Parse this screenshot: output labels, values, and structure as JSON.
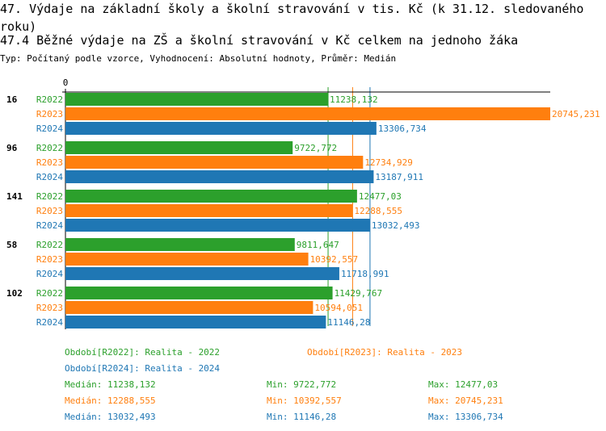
{
  "title": "47. Výdaje na základní školy a školní stravování v tis. Kč (k 31.12. sledovaného roku)",
  "subtitle": "47.4 Běžné výdaje na ZŠ a školní stravování v Kč celkem na jednoho žáka",
  "info": "Typ: Počítaný podle vzorce, Vyhodnocení: Absolutní hodnoty, Průměr: Medián",
  "colors": {
    "R2022": "#2ca02c",
    "R2023": "#ff7f0e",
    "R2024": "#1f77b4"
  },
  "chart_data": {
    "type": "bar",
    "orientation": "horizontal",
    "xlim": [
      0,
      20745.231
    ],
    "x_tick_labels": [
      "0"
    ],
    "categories": [
      "16",
      "96",
      "141",
      "58",
      "102"
    ],
    "series": [
      {
        "name": "R2022",
        "values": [
          11238.132,
          9722.772,
          12477.03,
          9811.647,
          11429.767
        ],
        "labels": [
          "11238,132",
          "9722,772",
          "12477,03",
          "9811,647",
          "11429,767"
        ]
      },
      {
        "name": "R2023",
        "values": [
          20745.231,
          12734.929,
          12288.555,
          10392.557,
          10594.051
        ],
        "labels": [
          "20745,231",
          "12734,929",
          "12288,555",
          "10392,557",
          "10594,051"
        ]
      },
      {
        "name": "R2024",
        "values": [
          13306.734,
          13187.911,
          13032.493,
          11718.991,
          11146.28
        ],
        "labels": [
          "13306,734",
          "13187,911",
          "13032,493",
          "11718,991",
          "11146,28"
        ]
      }
    ],
    "medians": [
      11238.132,
      12288.555,
      13032.493
    ]
  },
  "legend": [
    {
      "text": "Období[R2022]: Realita - 2022"
    },
    {
      "text": "Období[R2023]: Realita - 2023"
    },
    {
      "text": "Období[R2024]: Realita - 2024"
    }
  ],
  "stats": [
    {
      "median": "Medián: 11238,132",
      "min": "Min: 9722,772",
      "max": "Max: 12477,03"
    },
    {
      "median": "Medián: 12288,555",
      "min": "Min: 10392,557",
      "max": "Max: 20745,231"
    },
    {
      "median": "Medián: 13032,493",
      "min": "Min: 11146,28",
      "max": "Max: 13306,734"
    }
  ]
}
